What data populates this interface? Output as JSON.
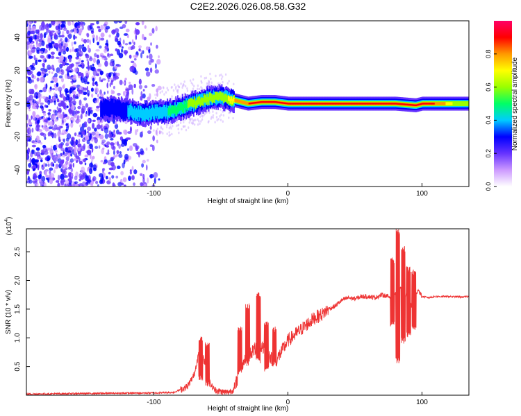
{
  "title": "C2E2.2026.026.08.58.G32",
  "chart_data": [
    {
      "type": "heatmap",
      "name": "spectrogram",
      "xlabel": "Height of straight line (km)",
      "ylabel": "Frequency (Hz)",
      "xlim": [
        -195,
        135
      ],
      "ylim": [
        -50,
        50
      ],
      "x_ticks": [
        -100,
        0,
        100
      ],
      "y_ticks": [
        -40,
        -20,
        0,
        20,
        40
      ],
      "colorbar": {
        "label": "Normalized spectral amplitude",
        "range": [
          0.0,
          1.0
        ],
        "ticks": [
          0.0,
          0.2,
          0.4,
          0.6,
          0.8
        ],
        "colors": [
          "#ffffff",
          "#cc99ff",
          "#6633ff",
          "#0000ff",
          "#00ccff",
          "#00ff66",
          "#99ff00",
          "#ffff00",
          "#ff9900",
          "#ff0000",
          "#ff0066"
        ]
      },
      "ridge": {
        "x": [
          -195,
          -130,
          -110,
          -90,
          -75,
          -60,
          -50,
          -40,
          -30,
          -20,
          -10,
          0,
          10,
          30,
          60,
          80,
          95,
          100,
          135
        ],
        "freq_hz": [
          -2,
          -3,
          -6,
          -5,
          -1,
          3,
          4,
          2,
          0,
          1,
          1,
          0,
          0,
          0,
          0,
          0,
          -1,
          0,
          0
        ],
        "peak_amplitude": [
          0.2,
          0.25,
          0.35,
          0.45,
          0.5,
          0.55,
          0.6,
          0.7,
          0.8,
          0.85,
          0.85,
          0.9,
          0.9,
          0.9,
          0.9,
          0.9,
          0.95,
          0.9,
          0.5
        ]
      }
    },
    {
      "type": "line",
      "name": "snr",
      "xlabel": "Height of straight line (km)",
      "ylabel": "SNR (10 * v/v)",
      "y_multiplier": "(x10",
      "y_multiplier_exp": "4",
      "y_multiplier_close": ")",
      "xlim": [
        -195,
        135
      ],
      "ylim": [
        0,
        2.9
      ],
      "x_ticks": [
        -100,
        0,
        100
      ],
      "y_ticks": [
        0.5,
        1.0,
        1.5,
        2.0,
        2.5
      ],
      "y_tick_labels": [
        "0.5",
        "1.0",
        "1.5",
        "2.0",
        "2.5"
      ],
      "color": "#ee3333",
      "series": {
        "name": "SNR",
        "x": [
          -195,
          -150,
          -100,
          -85,
          -75,
          -70,
          -65,
          -62,
          -58,
          -55,
          -50,
          -45,
          -40,
          -35,
          -30,
          -25,
          -20,
          -15,
          -10,
          -5,
          0,
          5,
          10,
          15,
          20,
          25,
          30,
          35,
          40,
          45,
          50,
          55,
          60,
          65,
          70,
          75,
          78,
          80,
          82,
          84,
          86,
          88,
          90,
          92,
          95,
          97,
          100,
          105,
          110,
          120,
          130,
          135
        ],
        "y": [
          0.02,
          0.03,
          0.04,
          0.05,
          0.15,
          0.35,
          0.9,
          0.55,
          0.2,
          0.1,
          0.06,
          0.05,
          0.1,
          0.5,
          0.7,
          0.8,
          0.85,
          0.75,
          0.55,
          0.75,
          0.95,
          1.05,
          1.15,
          1.25,
          1.35,
          1.4,
          1.5,
          1.55,
          1.65,
          1.7,
          1.68,
          1.72,
          1.72,
          1.7,
          1.75,
          1.72,
          1.7,
          1.75,
          1.85,
          1.9,
          1.6,
          1.7,
          2.2,
          1.55,
          1.7,
          1.85,
          1.72,
          1.7,
          1.72,
          1.72,
          1.71,
          1.72
        ],
        "spikes": [
          {
            "x": -65,
            "max": 1.05,
            "min": 0.25
          },
          {
            "x": -60,
            "max": 0.95,
            "min": 0.15
          },
          {
            "x": -36,
            "max": 1.2,
            "min": 0.35
          },
          {
            "x": -30,
            "max": 1.6,
            "min": 0.5
          },
          {
            "x": -22,
            "max": 1.8,
            "min": 0.55
          },
          {
            "x": -16,
            "max": 1.3,
            "min": 0.4
          },
          {
            "x": -10,
            "max": 1.2,
            "min": 0.5
          },
          {
            "x": 78,
            "max": 2.4,
            "min": 1.2
          },
          {
            "x": 82,
            "max": 2.9,
            "min": 0.55
          },
          {
            "x": 86,
            "max": 2.6,
            "min": 0.9
          },
          {
            "x": 90,
            "max": 2.25,
            "min": 1.0
          },
          {
            "x": 94,
            "max": 2.2,
            "min": 1.1
          }
        ]
      }
    }
  ]
}
